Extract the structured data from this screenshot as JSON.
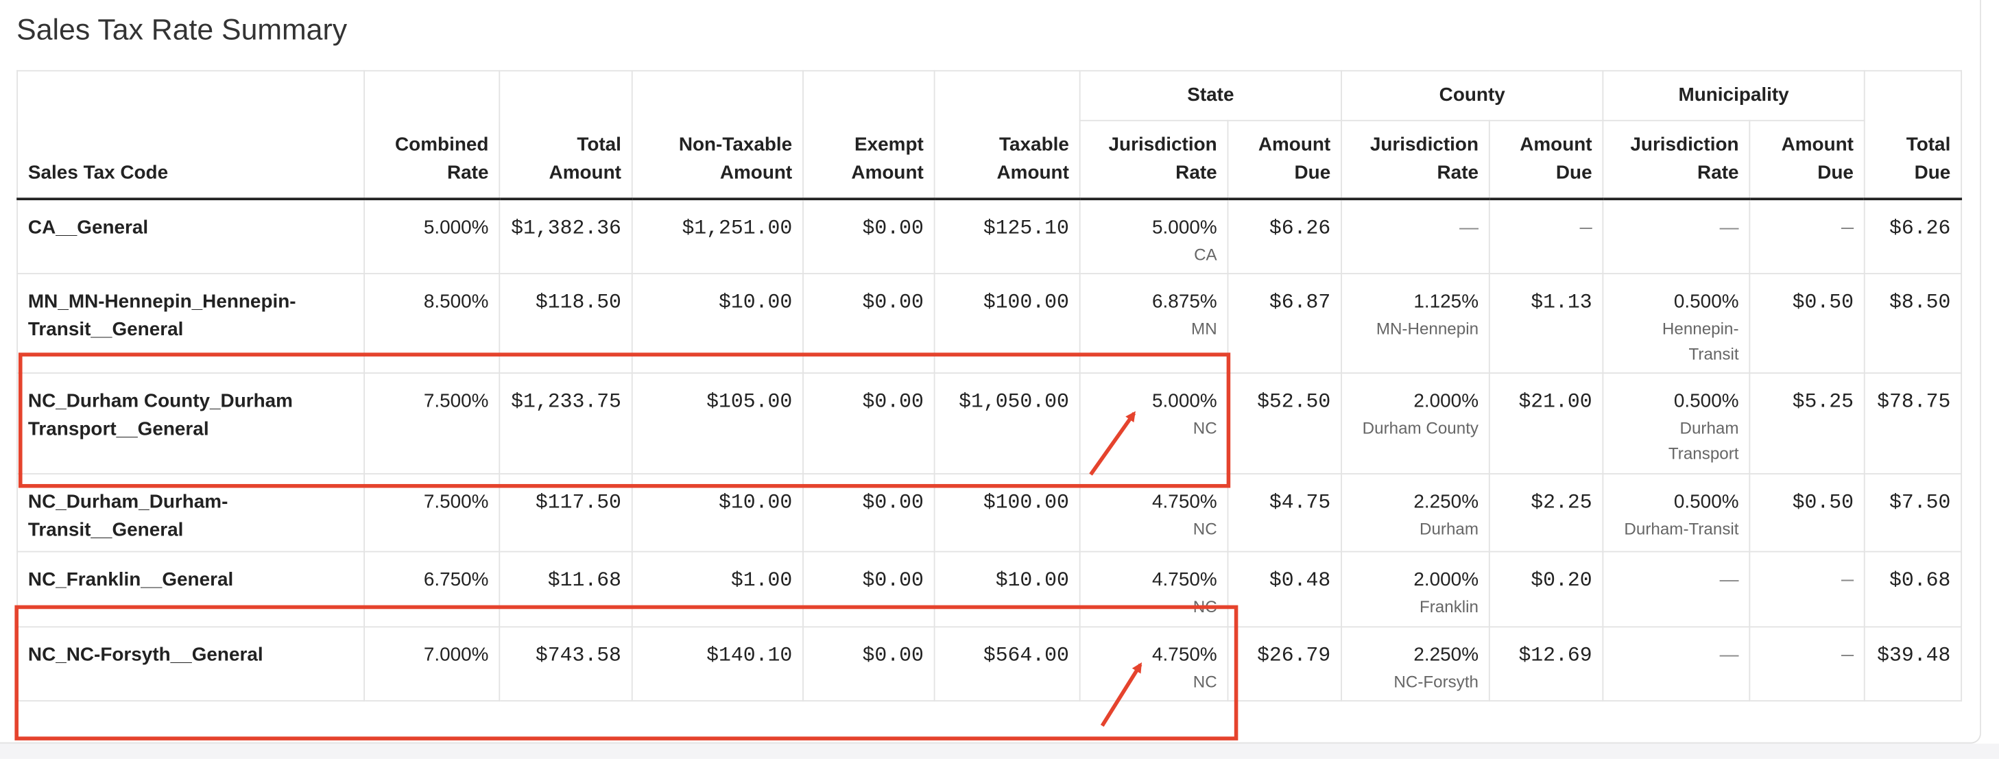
{
  "title": "Sales Tax Rate Summary",
  "header": {
    "columns_before": [
      "Sales Tax Code",
      "Combined Rate",
      "Total Amount",
      "Non-Taxable Amount",
      "Exempt Amount",
      "Taxable Amount"
    ],
    "groups": [
      {
        "title": "State",
        "columns": [
          "Jurisdiction Rate",
          "Amount Due"
        ]
      },
      {
        "title": "County",
        "columns": [
          "Jurisdiction Rate",
          "Amount Due"
        ]
      },
      {
        "title": "Municipality",
        "columns": [
          "Jurisdiction Rate",
          "Amount Due"
        ]
      }
    ],
    "columns_after": [
      "Total Due"
    ]
  },
  "rows": [
    {
      "cells": [
        "CA__General",
        "5.000%",
        "$1,382.36",
        "$1,251.00",
        "$0.00",
        "$125.10",
        {
          "text": "5.000%",
          "note": "CA"
        },
        "$6.26",
        "—",
        "—",
        "—",
        "—",
        "$6.26"
      ]
    },
    {
      "cells": [
        "MN_MN-Hennepin_Hennepin-Transit__General",
        "8.500%",
        "$118.50",
        "$10.00",
        "$0.00",
        "$100.00",
        {
          "text": "6.875%",
          "note": "MN"
        },
        "$6.87",
        {
          "text": "1.125%",
          "note": "MN-Hennepin"
        },
        "$1.13",
        {
          "text": "0.500%",
          "note": "Hennepin-Transit"
        },
        "$0.50",
        "$8.50"
      ]
    },
    {
      "cells": [
        "NC_Durham County_Durham Transport__General",
        "7.500%",
        "$1,233.75",
        "$105.00",
        "$0.00",
        "$1,050.00",
        {
          "text": "5.000%",
          "note": "NC"
        },
        "$52.50",
        {
          "text": "2.000%",
          "note": "Durham County"
        },
        "$21.00",
        {
          "text": "0.500%",
          "note": "Durham Transport"
        },
        "$5.25",
        "$78.75"
      ]
    },
    {
      "cells": [
        "NC_Durham_Durham-Transit__General",
        "7.500%",
        "$117.50",
        "$10.00",
        "$0.00",
        "$100.00",
        {
          "text": "4.750%",
          "note": "NC"
        },
        "$4.75",
        {
          "text": "2.250%",
          "note": "Durham"
        },
        "$2.25",
        {
          "text": "0.500%",
          "note": "Durham-Transit"
        },
        "$0.50",
        "$7.50"
      ]
    },
    {
      "cells": [
        "NC_Franklin__General",
        "6.750%",
        "$11.68",
        "$1.00",
        "$0.00",
        "$10.00",
        {
          "text": "4.750%",
          "note": "NC"
        },
        "$0.48",
        {
          "text": "2.000%",
          "note": "Franklin"
        },
        "$0.20",
        "—",
        "—",
        "$0.68"
      ]
    },
    {
      "cells": [
        "NC_NC-Forsyth__General",
        "7.000%",
        "$743.58",
        "$140.10",
        "$0.00",
        "$564.00",
        {
          "text": "4.750%",
          "note": "NC"
        },
        "$26.79",
        {
          "text": "2.250%",
          "note": "NC-Forsyth"
        },
        "$12.69",
        "—",
        "—",
        "$39.48"
      ]
    }
  ]
}
